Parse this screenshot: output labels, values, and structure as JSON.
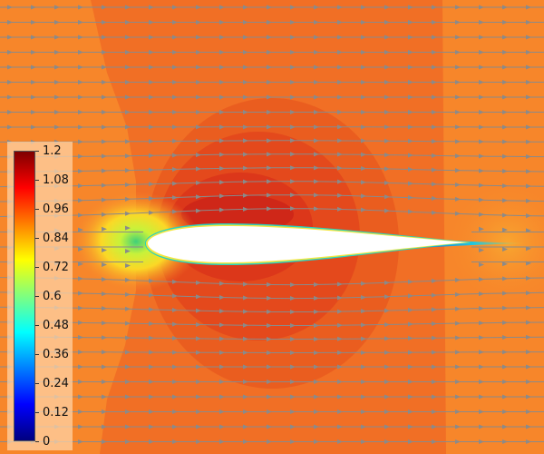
{
  "colormap": {
    "name": "jet",
    "stops": [
      "#00007f",
      "#0000ff",
      "#007fff",
      "#00ffff",
      "#7fff7f",
      "#ffff00",
      "#ff7f00",
      "#ff0000",
      "#7f0000"
    ],
    "range": [
      0,
      1.2
    ]
  },
  "colorbar": {
    "labels": [
      "1.2",
      "1.08",
      "0.96",
      "0.84",
      "0.72",
      "0.6",
      "0.48",
      "0.36",
      "0.24",
      "0.12",
      "0"
    ]
  },
  "field_colors": {
    "freestream": "#f7862a",
    "outer_band": "#f16f25",
    "inner_band": "#e95a1e",
    "core_band": "#e2461b",
    "peak_band": "#d9321a",
    "airfoil": "#ffffff",
    "streamline": "#8a8a8a"
  }
}
